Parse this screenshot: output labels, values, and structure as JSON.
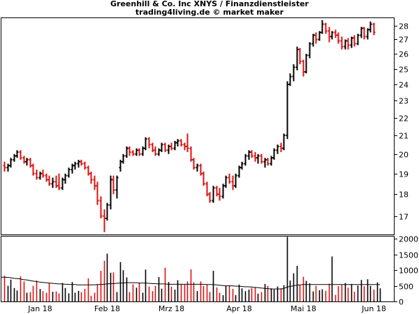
{
  "header": {
    "title": "Greenhill & Co. Inc XNYS / Finanzdienstleister",
    "subtitle": "trading4living.de © market maker"
  },
  "chart_data": {
    "type": "ohlc",
    "title": "Greenhill & Co. Inc XNYS / Finanzdienstleister",
    "subtitle": "trading4living.de © market maker",
    "colors": {
      "up": "#000000",
      "down": "#e01010",
      "volume_ma": "#000000",
      "frame": "#000000"
    },
    "price_axis": {
      "ylim": [
        16.2,
        28.6
      ],
      "scale": "log",
      "ticks": [
        17,
        18,
        19,
        20,
        21,
        22,
        23,
        24,
        25,
        26,
        27,
        28
      ]
    },
    "volume_axis": {
      "ylim": [
        0,
        2100
      ],
      "ticks": [
        0,
        500,
        1000,
        1500,
        2000
      ]
    },
    "x_axis": {
      "labels": [
        {
          "label": "Jan 18",
          "index": 11
        },
        {
          "label": "Feb 18",
          "index": 32
        },
        {
          "label": "Mrz 18",
          "index": 52
        },
        {
          "label": "Apr 18",
          "index": 73
        },
        {
          "label": "Mai 18",
          "index": 93
        },
        {
          "label": "Jun 18",
          "index": 115
        }
      ]
    },
    "bars": [
      [
        19.4,
        19.6,
        19.1,
        19.3
      ],
      [
        19.3,
        19.5,
        19.1,
        19.4
      ],
      [
        19.4,
        19.8,
        19.3,
        19.7
      ],
      [
        19.7,
        20.0,
        19.6,
        19.9
      ],
      [
        19.9,
        20.2,
        19.8,
        20.1
      ],
      [
        20.1,
        20.2,
        19.7,
        19.8
      ],
      [
        19.8,
        19.9,
        19.5,
        19.6
      ],
      [
        19.6,
        19.8,
        19.4,
        19.7
      ],
      [
        19.7,
        19.8,
        19.3,
        19.4
      ],
      [
        19.4,
        19.5,
        18.9,
        19.0
      ],
      [
        19.0,
        19.2,
        18.7,
        18.8
      ],
      [
        18.8,
        19.1,
        18.7,
        19.0
      ],
      [
        19.0,
        19.2,
        18.8,
        18.9
      ],
      [
        18.9,
        19.0,
        18.6,
        18.7
      ],
      [
        18.7,
        18.9,
        18.4,
        18.5
      ],
      [
        18.5,
        18.8,
        18.3,
        18.6
      ],
      [
        18.6,
        18.9,
        18.3,
        18.4
      ],
      [
        18.4,
        19.0,
        18.2,
        18.3
      ],
      [
        18.3,
        18.8,
        18.2,
        18.7
      ],
      [
        18.7,
        19.0,
        18.5,
        18.9
      ],
      [
        18.9,
        19.3,
        18.8,
        19.2
      ],
      [
        19.2,
        19.5,
        19.0,
        19.4
      ],
      [
        19.4,
        19.6,
        19.2,
        19.5
      ],
      [
        19.5,
        19.7,
        19.3,
        19.6
      ],
      [
        19.6,
        19.7,
        19.4,
        19.5
      ],
      [
        19.5,
        19.6,
        19.2,
        19.3
      ],
      [
        19.3,
        19.4,
        18.9,
        19.0
      ],
      [
        19.0,
        19.1,
        18.5,
        18.7
      ],
      [
        18.7,
        18.9,
        18.2,
        18.4
      ],
      [
        18.4,
        18.6,
        17.5,
        17.7
      ],
      [
        17.7,
        17.9,
        16.9,
        17.0
      ],
      [
        17.0,
        17.3,
        16.3,
        16.9
      ],
      [
        16.9,
        17.6,
        16.8,
        17.5
      ],
      [
        17.5,
        18.9,
        17.3,
        18.7
      ],
      [
        18.7,
        18.9,
        18.0,
        18.2
      ],
      [
        18.2,
        18.9,
        17.8,
        18.8
      ],
      [
        19.3,
        19.7,
        19.1,
        19.6
      ],
      [
        19.6,
        20.0,
        19.5,
        19.9
      ],
      [
        19.9,
        20.4,
        19.8,
        20.3
      ],
      [
        20.3,
        20.4,
        19.9,
        20.1
      ],
      [
        20.1,
        20.2,
        19.9,
        20.0
      ],
      [
        20.0,
        20.3,
        19.9,
        20.2
      ],
      [
        20.2,
        20.3,
        19.9,
        20.0
      ],
      [
        20.0,
        20.4,
        19.9,
        20.3
      ],
      [
        20.3,
        20.9,
        20.2,
        20.8
      ],
      [
        20.8,
        20.9,
        20.3,
        20.5
      ],
      [
        20.5,
        20.6,
        20.1,
        20.2
      ],
      [
        20.2,
        20.4,
        19.9,
        20.0
      ],
      [
        20.0,
        20.3,
        19.9,
        20.2
      ],
      [
        20.2,
        20.6,
        20.1,
        20.5
      ],
      [
        20.5,
        20.6,
        20.1,
        20.2
      ],
      [
        20.2,
        20.5,
        20.0,
        20.4
      ],
      [
        20.4,
        20.6,
        20.2,
        20.3
      ],
      [
        20.3,
        20.7,
        20.2,
        20.6
      ],
      [
        20.6,
        20.8,
        20.4,
        20.7
      ],
      [
        20.7,
        20.8,
        20.4,
        20.5
      ],
      [
        20.5,
        20.6,
        20.2,
        20.4
      ],
      [
        20.4,
        21.1,
        20.1,
        20.3
      ],
      [
        20.3,
        20.4,
        19.6,
        19.7
      ],
      [
        19.7,
        19.8,
        19.2,
        19.3
      ],
      [
        19.3,
        19.5,
        19.1,
        19.4
      ],
      [
        19.4,
        19.5,
        18.9,
        19.0
      ],
      [
        19.0,
        19.1,
        18.4,
        18.5
      ],
      [
        18.5,
        18.6,
        17.9,
        18.0
      ],
      [
        18.0,
        18.1,
        17.6,
        17.7
      ],
      [
        17.7,
        18.4,
        17.6,
        18.3
      ],
      [
        18.3,
        18.4,
        17.9,
        18.0
      ],
      [
        18.0,
        18.3,
        17.7,
        17.9
      ],
      [
        17.9,
        18.5,
        17.8,
        18.4
      ],
      [
        18.4,
        18.9,
        18.3,
        18.8
      ],
      [
        18.8,
        19.0,
        18.5,
        18.6
      ],
      [
        18.6,
        18.9,
        18.2,
        18.4
      ],
      [
        18.4,
        19.0,
        18.3,
        18.9
      ],
      [
        18.9,
        19.4,
        18.8,
        19.3
      ],
      [
        19.3,
        19.6,
        19.2,
        19.5
      ],
      [
        19.5,
        20.0,
        19.4,
        19.9
      ],
      [
        19.9,
        20.2,
        19.7,
        20.1
      ],
      [
        20.1,
        20.2,
        19.8,
        19.9
      ],
      [
        19.9,
        20.1,
        19.6,
        19.8
      ],
      [
        19.8,
        20.0,
        19.5,
        19.9
      ],
      [
        19.9,
        20.0,
        19.5,
        19.6
      ],
      [
        19.6,
        19.8,
        19.3,
        19.7
      ],
      [
        19.7,
        19.8,
        19.4,
        19.5
      ],
      [
        19.5,
        19.9,
        19.4,
        19.8
      ],
      [
        19.8,
        20.3,
        19.7,
        20.2
      ],
      [
        20.2,
        20.5,
        20.0,
        20.4
      ],
      [
        20.4,
        20.6,
        20.1,
        20.3
      ],
      [
        20.3,
        21.1,
        20.2,
        21.0
      ],
      [
        21.0,
        24.2,
        20.8,
        24.0
      ],
      [
        24.0,
        24.7,
        23.9,
        24.5
      ],
      [
        24.5,
        25.3,
        24.2,
        25.1
      ],
      [
        25.1,
        26.5,
        24.9,
        26.3
      ],
      [
        26.3,
        26.4,
        25.3,
        25.5
      ],
      [
        25.5,
        25.6,
        24.5,
        24.8
      ],
      [
        24.8,
        26.0,
        24.7,
        25.9
      ],
      [
        25.9,
        26.8,
        25.7,
        26.7
      ],
      [
        26.7,
        27.4,
        26.5,
        27.3
      ],
      [
        27.3,
        27.5,
        26.7,
        27.0
      ],
      [
        27.0,
        27.6,
        26.9,
        27.5
      ],
      [
        27.5,
        28.4,
        27.4,
        28.1
      ],
      [
        28.1,
        28.2,
        27.4,
        27.6
      ],
      [
        27.6,
        27.9,
        26.8,
        27.2
      ],
      [
        27.2,
        27.6,
        27.0,
        27.5
      ],
      [
        27.5,
        27.7,
        27.1,
        27.3
      ],
      [
        27.3,
        27.5,
        26.7,
        26.9
      ],
      [
        26.9,
        27.2,
        26.3,
        26.5
      ],
      [
        26.5,
        27.0,
        26.3,
        26.9
      ],
      [
        26.9,
        27.1,
        26.3,
        26.6
      ],
      [
        26.6,
        27.2,
        26.4,
        27.1
      ],
      [
        27.1,
        27.3,
        26.5,
        26.7
      ],
      [
        26.7,
        27.4,
        26.6,
        27.3
      ],
      [
        27.3,
        27.9,
        27.1,
        27.8
      ],
      [
        27.8,
        27.9,
        27.0,
        27.2
      ],
      [
        27.2,
        27.8,
        27.0,
        27.7
      ],
      [
        27.7,
        28.3,
        27.5,
        28.1
      ],
      [
        28.1,
        28.2,
        27.3,
        27.5
      ]
    ],
    "volume": [
      820,
      500,
      700,
      430,
      350,
      800,
      640,
      280,
      300,
      500,
      670,
      400,
      330,
      280,
      580,
      310,
      320,
      260,
      590,
      430,
      260,
      620,
      280,
      340,
      300,
      400,
      740,
      180,
      280,
      550,
      980,
      1300,
      1530,
      920,
      930,
      300,
      1260,
      1000,
      770,
      300,
      550,
      440,
      600,
      280,
      1020,
      480,
      330,
      500,
      780,
      410,
      1080,
      620,
      470,
      380,
      680,
      560,
      540,
      640,
      1030,
      610,
      330,
      640,
      500,
      540,
      300,
      980,
      450,
      280,
      200,
      500,
      520,
      400,
      200,
      540,
      420,
      330,
      380,
      430,
      460,
      250,
      300,
      560,
      500,
      420,
      380,
      480,
      420,
      520,
      2070,
      670,
      900,
      1140,
      520,
      790,
      660,
      580,
      320,
      500,
      360,
      390,
      340,
      570,
      1440,
      210,
      490,
      530,
      590,
      440,
      560,
      310,
      510,
      690,
      490,
      710,
      500,
      380,
      610,
      420
    ],
    "volume_ma": [
      780,
      770,
      760,
      740,
      730,
      720,
      700,
      690,
      670,
      650,
      640,
      620,
      610,
      600,
      590,
      580,
      570,
      560,
      560,
      550,
      550,
      540,
      540,
      530,
      530,
      530,
      530,
      530,
      530,
      540,
      540,
      550,
      560,
      570,
      570,
      580,
      590,
      590,
      600,
      600,
      600,
      600,
      590,
      590,
      590,
      580,
      570,
      570,
      560,
      560,
      560,
      550,
      550,
      550,
      550,
      550,
      550,
      550,
      550,
      550,
      550,
      550,
      550,
      540,
      540,
      540,
      530,
      520,
      510,
      500,
      500,
      500,
      490,
      490,
      480,
      470,
      470,
      460,
      450,
      440,
      430,
      420,
      410,
      400,
      400,
      400,
      400,
      410,
      460,
      480,
      500,
      520,
      530,
      540,
      540,
      540,
      540,
      540,
      540,
      540,
      540,
      540,
      540,
      540,
      540,
      540,
      540,
      540,
      540,
      540,
      540,
      540,
      540,
      540,
      540,
      540,
      540,
      540
    ]
  }
}
